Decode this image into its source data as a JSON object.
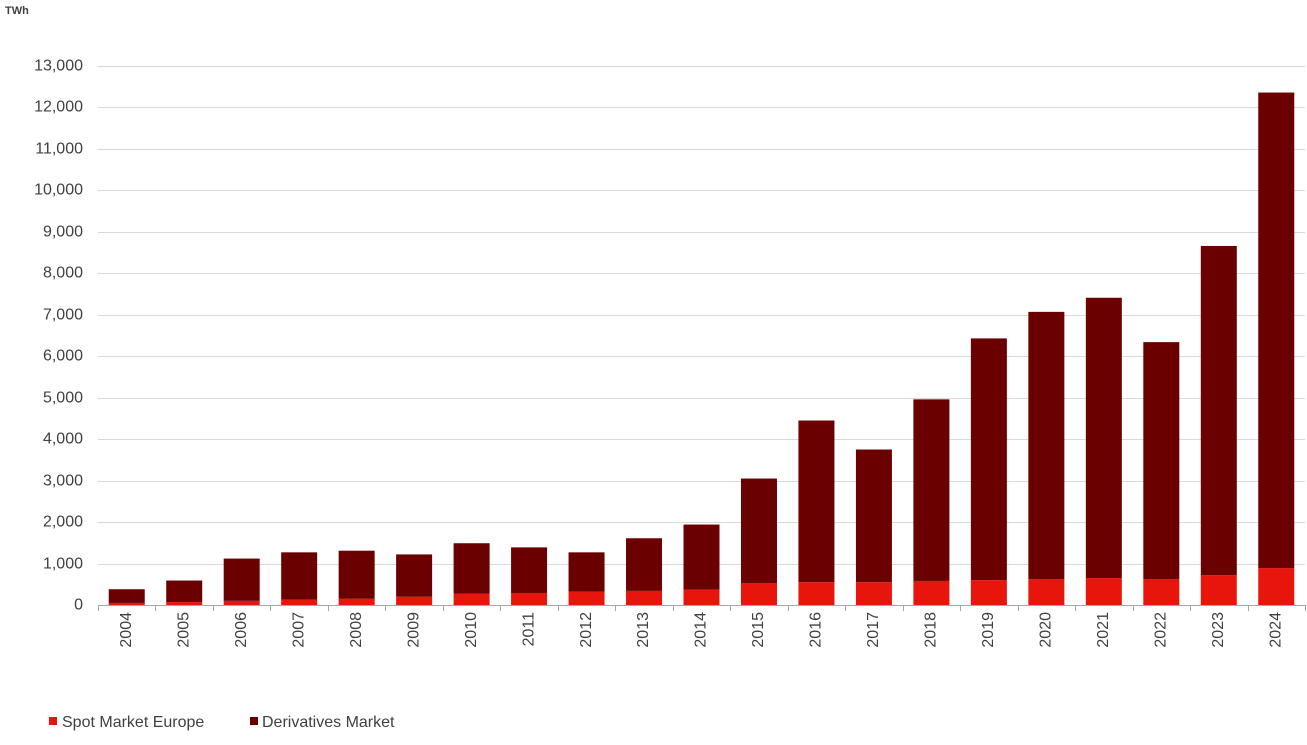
{
  "chart_data": {
    "type": "bar",
    "stacked": true,
    "ylabel": "TWh",
    "categories": [
      "2004",
      "2005",
      "2006",
      "2007",
      "2008",
      "2009",
      "2010",
      "2011",
      "2012",
      "2013",
      "2014",
      "2015",
      "2016",
      "2017",
      "2018",
      "2019",
      "2020",
      "2021",
      "2022",
      "2023",
      "2024"
    ],
    "series": [
      {
        "name": "Spot Market Europe",
        "color": "#e8150d",
        "values": [
          50,
          70,
          100,
          130,
          150,
          200,
          270,
          290,
          320,
          340,
          370,
          530,
          550,
          550,
          580,
          600,
          620,
          650,
          620,
          720,
          890
        ]
      },
      {
        "name": "Derivatives Market",
        "color": "#6b0000",
        "values": [
          330,
          520,
          1020,
          1140,
          1160,
          1020,
          1220,
          1100,
          950,
          1270,
          1570,
          2520,
          3900,
          3200,
          4380,
          5830,
          6450,
          6760,
          5720,
          7940,
          11470
        ]
      }
    ],
    "ylim": [
      0,
      13000
    ],
    "yticks": [
      0,
      1000,
      2000,
      3000,
      4000,
      5000,
      6000,
      7000,
      8000,
      9000,
      10000,
      11000,
      12000,
      13000
    ],
    "ytick_labels": [
      "0",
      "1,000",
      "2,000",
      "3,000",
      "4,000",
      "5,000",
      "6,000",
      "7,000",
      "8,000",
      "9,000",
      "10,000",
      "11,000",
      "12,000",
      "13,000"
    ],
    "grid": true,
    "legend_position": "bottom-left"
  }
}
